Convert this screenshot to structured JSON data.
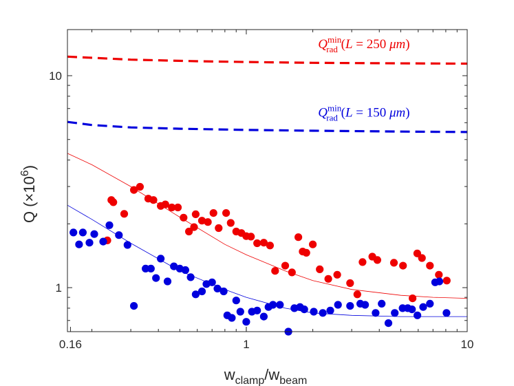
{
  "chart_data": {
    "type": "scatter",
    "xscale": "log",
    "yscale": "log",
    "xlim": [
      0.155,
      10
    ],
    "ylim": [
      0.62,
      16.5
    ],
    "xticks": [
      {
        "value": 0.16,
        "label": "0.16"
      },
      {
        "value": 1,
        "label": "1"
      },
      {
        "value": 10,
        "label": "10"
      }
    ],
    "yticks": [
      {
        "value": 1,
        "label": "1"
      },
      {
        "value": 10,
        "label": "10"
      }
    ],
    "xlabel": {
      "main": "w",
      "sub1": "clamp",
      "slash": "/w",
      "sub2": "beam"
    },
    "ylabel": {
      "text": "Q (×10",
      "sup": "6",
      "close": ")"
    },
    "colors": {
      "red": "#ee0000",
      "blue": "#0000dd",
      "axis": "#262626"
    },
    "annotations": [
      {
        "color": "red",
        "q": "Q",
        "sup": "min",
        "sub": "rad",
        "open": "(",
        "var": "L",
        "eq": " = 250 ",
        "unit": "μm",
        "close": ")",
        "x": 5.5,
        "y": 13.5
      },
      {
        "color": "blue",
        "q": "Q",
        "sup": "min",
        "sub": "rad",
        "open": "(",
        "var": "L",
        "eq": " = 150 ",
        "unit": "μm",
        "close": ")",
        "x": 5.5,
        "y": 6.4
      }
    ],
    "series": [
      {
        "name": "Q_rad_min L=250um",
        "kind": "dashed-line",
        "color": "red",
        "x": [
          0.155,
          0.3,
          0.6,
          1.0,
          2.0,
          4.0,
          10.0
        ],
        "y": [
          12.3,
          11.9,
          11.7,
          11.6,
          11.5,
          11.45,
          11.4
        ]
      },
      {
        "name": "Q_rad_min L=150um",
        "kind": "dashed-line",
        "color": "blue",
        "x": [
          0.155,
          0.2,
          0.3,
          0.5,
          1.0,
          2.0,
          5.0,
          10.0
        ],
        "y": [
          6.05,
          5.85,
          5.7,
          5.62,
          5.55,
          5.5,
          5.45,
          5.42
        ]
      },
      {
        "name": "fit red",
        "kind": "thin-line",
        "color": "red",
        "x": [
          0.155,
          0.2,
          0.3,
          0.5,
          0.8,
          1.0,
          1.5,
          2.0,
          3.0,
          5.0,
          7.0,
          10.0
        ],
        "y": [
          4.3,
          3.8,
          3.0,
          2.15,
          1.6,
          1.43,
          1.2,
          1.08,
          0.98,
          0.92,
          0.9,
          0.89
        ]
      },
      {
        "name": "fit blue",
        "kind": "thin-line",
        "color": "blue",
        "x": [
          0.155,
          0.2,
          0.3,
          0.5,
          0.8,
          1.0,
          1.5,
          2.0,
          3.0,
          5.0,
          7.0,
          10.0
        ],
        "y": [
          2.45,
          2.1,
          1.62,
          1.2,
          0.98,
          0.9,
          0.8,
          0.76,
          0.74,
          0.73,
          0.73,
          0.73
        ]
      },
      {
        "name": "measured red",
        "kind": "points",
        "color": "red",
        "x": [
          0.235,
          0.245,
          0.25,
          0.28,
          0.31,
          0.33,
          0.36,
          0.38,
          0.41,
          0.43,
          0.46,
          0.49,
          0.52,
          0.55,
          0.58,
          0.59,
          0.63,
          0.67,
          0.71,
          0.75,
          0.81,
          0.85,
          0.9,
          0.95,
          1.0,
          1.05,
          1.12,
          1.2,
          1.28,
          1.35,
          1.5,
          1.61,
          1.72,
          1.8,
          1.87,
          2.0,
          2.15,
          2.35,
          2.58,
          2.95,
          3.18,
          3.36,
          3.72,
          3.92,
          4.66,
          5.12,
          5.66,
          5.94,
          6.24,
          6.78,
          7.44,
          8.08
        ],
        "y": [
          1.67,
          2.59,
          2.53,
          2.23,
          2.89,
          2.99,
          2.63,
          2.59,
          2.43,
          2.47,
          2.39,
          2.39,
          2.14,
          1.84,
          1.93,
          2.22,
          2.07,
          2.04,
          2.25,
          1.91,
          2.25,
          2.02,
          1.84,
          1.81,
          1.75,
          1.74,
          1.62,
          1.63,
          1.58,
          1.2,
          1.27,
          1.18,
          1.73,
          1.48,
          1.46,
          1.6,
          1.22,
          1.1,
          1.15,
          1.05,
          0.93,
          1.32,
          1.4,
          1.35,
          1.31,
          1.27,
          0.89,
          1.45,
          1.38,
          1.27,
          1.15,
          1.08
        ]
      },
      {
        "name": "measured blue",
        "kind": "points",
        "color": "blue",
        "x": [
          0.165,
          0.175,
          0.182,
          0.195,
          0.205,
          0.225,
          0.24,
          0.265,
          0.29,
          0.31,
          0.35,
          0.37,
          0.39,
          0.41,
          0.44,
          0.47,
          0.5,
          0.53,
          0.56,
          0.59,
          0.63,
          0.66,
          0.7,
          0.74,
          0.79,
          0.82,
          0.86,
          0.9,
          0.94,
          1.0,
          1.06,
          1.12,
          1.2,
          1.26,
          1.32,
          1.42,
          1.55,
          1.65,
          1.75,
          1.83,
          2.02,
          2.22,
          2.4,
          2.6,
          2.95,
          3.28,
          3.45,
          3.85,
          4.1,
          4.4,
          4.7,
          5.1,
          5.38,
          5.62,
          5.95,
          6.32,
          6.78,
          7.16,
          7.48,
          8.06
        ],
        "y": [
          1.82,
          1.6,
          1.82,
          1.63,
          1.79,
          1.65,
          1.97,
          1.77,
          1.59,
          0.82,
          1.23,
          1.23,
          1.11,
          1.37,
          1.07,
          1.26,
          1.23,
          1.21,
          1.12,
          0.93,
          0.96,
          1.04,
          1.06,
          0.99,
          0.96,
          0.74,
          0.72,
          0.87,
          0.77,
          0.69,
          0.77,
          0.78,
          0.73,
          0.81,
          0.83,
          0.83,
          0.62,
          0.8,
          0.81,
          0.79,
          0.77,
          0.76,
          0.78,
          0.83,
          0.82,
          0.84,
          0.83,
          0.76,
          0.84,
          0.68,
          0.76,
          0.8,
          0.8,
          0.79,
          0.74,
          0.81,
          0.84,
          1.06,
          1.07,
          0.76
        ]
      }
    ]
  }
}
